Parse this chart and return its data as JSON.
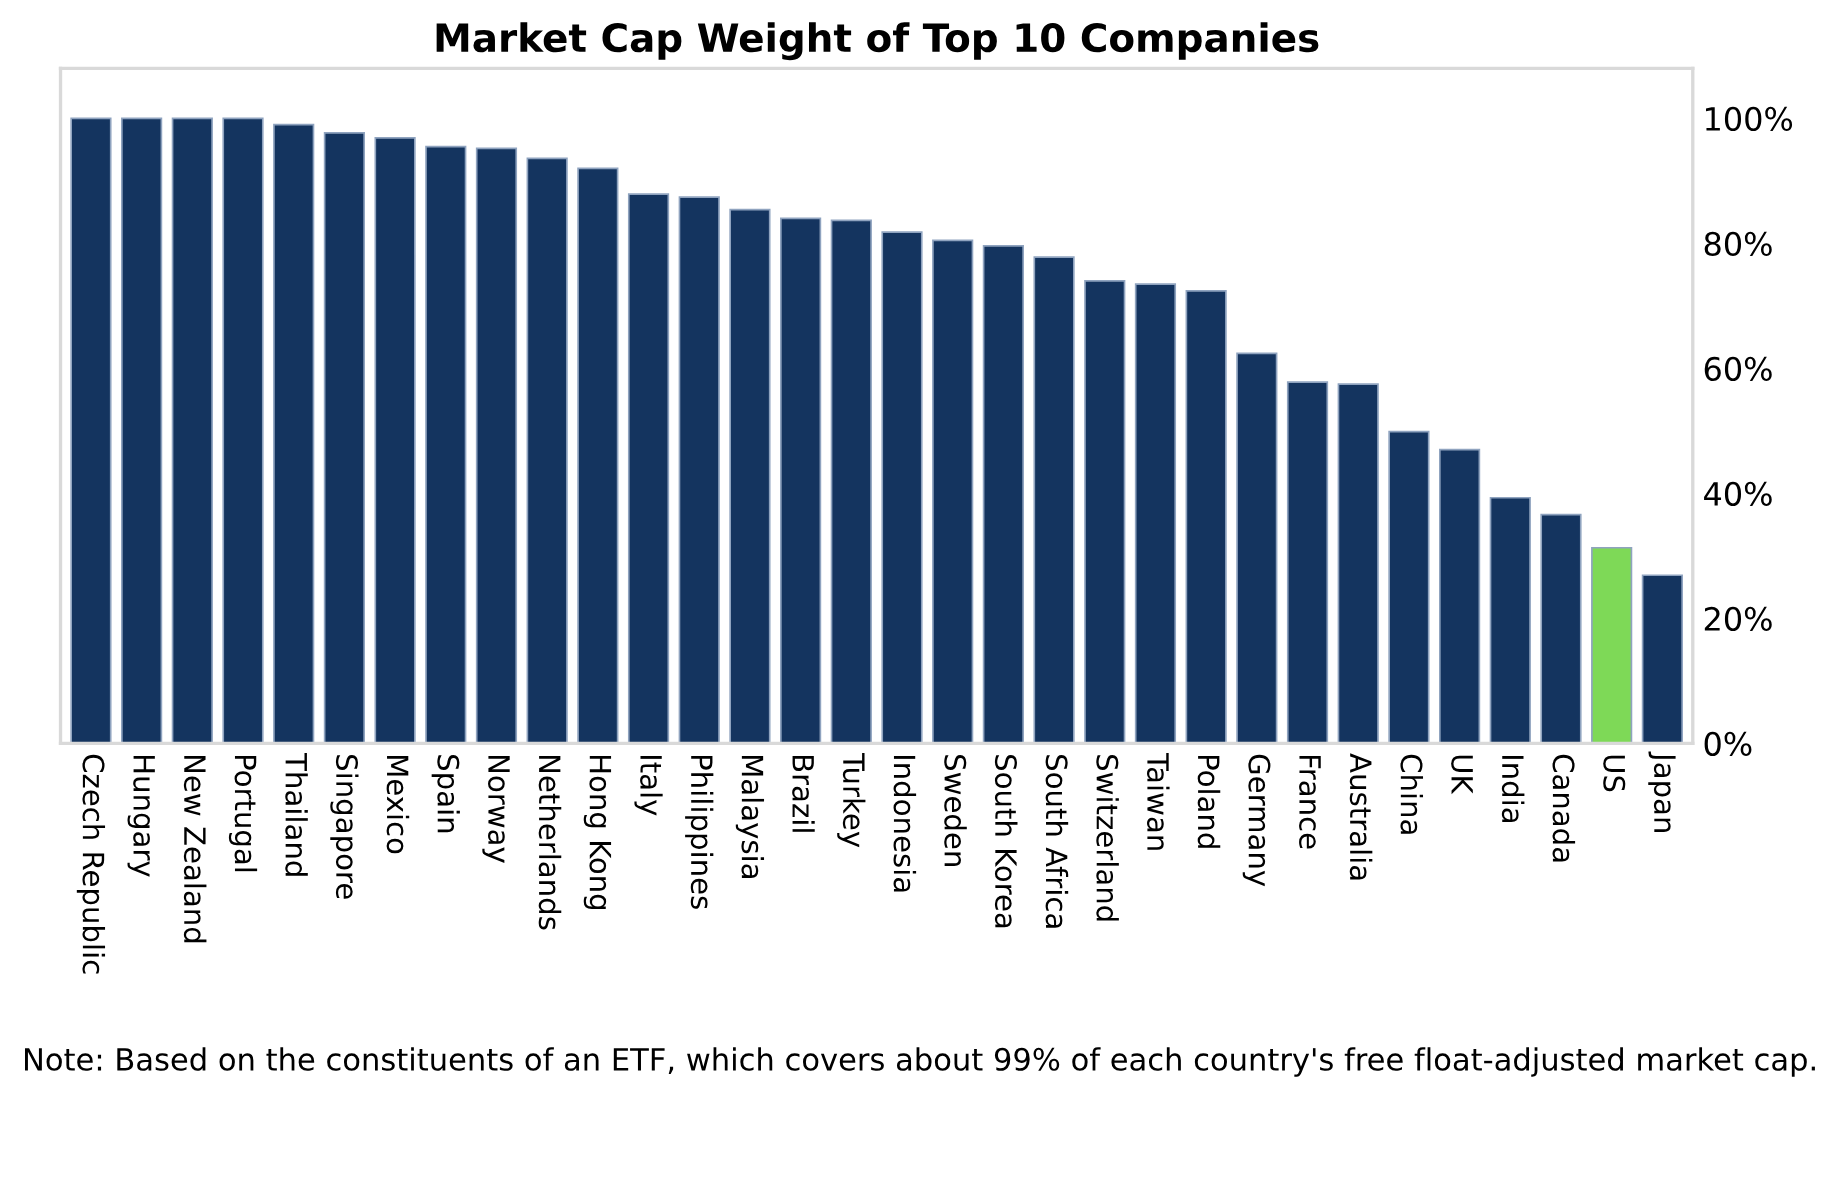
{
  "chart_data": {
    "type": "bar",
    "title": "Market Cap Weight of Top 10 Companies",
    "categories": [
      "Czech Republic",
      "Hungary",
      "New Zealand",
      "Portugal",
      "Thailand",
      "Singapore",
      "Mexico",
      "Spain",
      "Norway",
      "Netherlands",
      "Hong Kong",
      "Italy",
      "Philippines",
      "Malaysia",
      "Brazil",
      "Turkey",
      "Indonesia",
      "Sweden",
      "South Korea",
      "South Africa",
      "Switzerland",
      "Taiwan",
      "Poland",
      "Germany",
      "France",
      "Australia",
      "China",
      "UK",
      "India",
      "Canada",
      "US",
      "Japan"
    ],
    "values": [
      100,
      100,
      100,
      100,
      99,
      97.7,
      96.9,
      95.5,
      95.2,
      93.6,
      92,
      87.9,
      87.4,
      85.4,
      84,
      83.7,
      81.8,
      80.5,
      79.6,
      77.8,
      74,
      73.5,
      72.4,
      62.4,
      57.8,
      57.5,
      49.9,
      47,
      39.3,
      36.6,
      31.3,
      26.9
    ],
    "colors": [
      "#14345f",
      "#14345f",
      "#14345f",
      "#14345f",
      "#14345f",
      "#14345f",
      "#14345f",
      "#14345f",
      "#14345f",
      "#14345f",
      "#14345f",
      "#14345f",
      "#14345f",
      "#14345f",
      "#14345f",
      "#14345f",
      "#14345f",
      "#14345f",
      "#14345f",
      "#14345f",
      "#14345f",
      "#14345f",
      "#14345f",
      "#14345f",
      "#14345f",
      "#14345f",
      "#14345f",
      "#14345f",
      "#14345f",
      "#14345f",
      "#7ed957",
      "#14345f"
    ],
    "ylim": [
      0,
      108
    ],
    "yticks": [
      {
        "value": 0,
        "label": "0%"
      },
      {
        "value": 20,
        "label": "20%"
      },
      {
        "value": 40,
        "label": "40%"
      },
      {
        "value": 60,
        "label": "60%"
      },
      {
        "value": 80,
        "label": "80%"
      },
      {
        "value": 100,
        "label": "100%"
      }
    ],
    "grid": false,
    "annotations": [
      "Note: Based on the constituents of an ETF, which covers about 99% of each country's free float-adjusted market cap."
    ]
  }
}
